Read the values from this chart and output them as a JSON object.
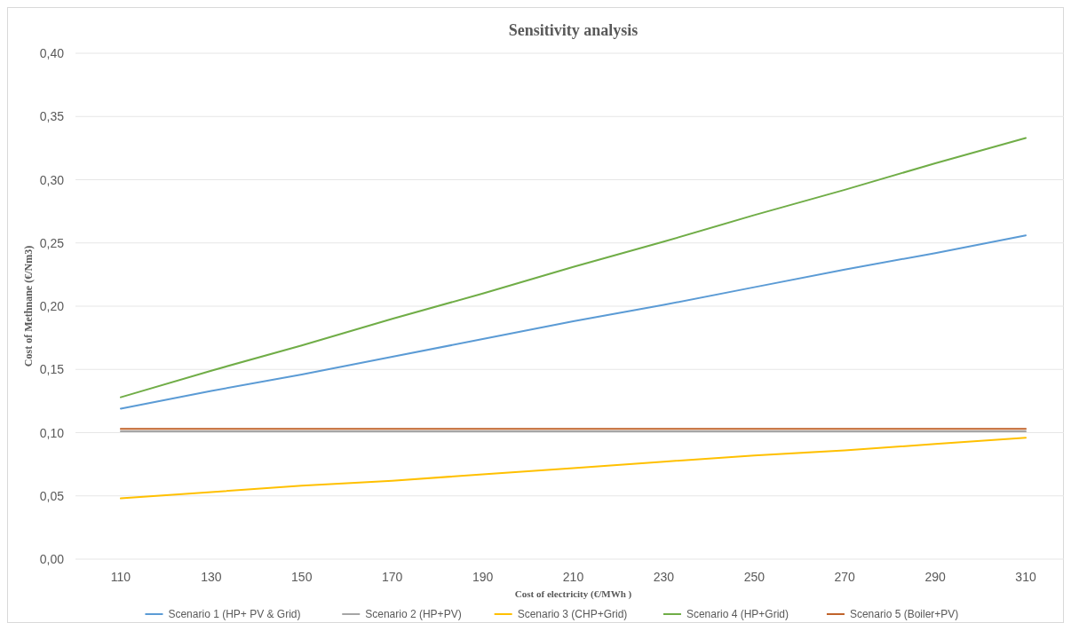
{
  "chart_data": {
    "type": "line",
    "title": "Sensitivity analysis",
    "xlabel": "Cost of electricity (€/MWh )",
    "ylabel": "Cost of Methnane (€/Nm3)",
    "categories": [
      "110",
      "130",
      "150",
      "170",
      "190",
      "210",
      "230",
      "250",
      "270",
      "290",
      "310"
    ],
    "series": [
      {
        "name": "Scenario 1 (HP+ PV & Grid)",
        "color": "#5b9bd5",
        "values": [
          0.119,
          0.133,
          0.146,
          0.16,
          0.174,
          0.188,
          0.201,
          0.215,
          0.229,
          0.242,
          0.256
        ]
      },
      {
        "name": "Scenario 2 (HP+PV)",
        "color": "#a5a5a5",
        "values": [
          0.101,
          0.101,
          0.101,
          0.101,
          0.101,
          0.101,
          0.101,
          0.101,
          0.101,
          0.101,
          0.101
        ]
      },
      {
        "name": "Scenario 3 (CHP+Grid)",
        "color": "#ffc000",
        "values": [
          0.048,
          0.053,
          0.058,
          0.062,
          0.067,
          0.072,
          0.077,
          0.082,
          0.086,
          0.091,
          0.096
        ]
      },
      {
        "name": "Scenario 4 (HP+Grid)",
        "color": "#70ad47",
        "values": [
          0.128,
          0.149,
          0.169,
          0.19,
          0.21,
          0.231,
          0.251,
          0.272,
          0.292,
          0.313,
          0.333
        ]
      },
      {
        "name": "Scenario 5 (Boiler+PV)",
        "color": "#c0632b",
        "values": [
          0.103,
          0.103,
          0.103,
          0.103,
          0.103,
          0.103,
          0.103,
          0.103,
          0.103,
          0.103,
          0.103
        ]
      }
    ],
    "ylim": [
      0,
      0.4
    ],
    "yticks": [
      {
        "value": 0,
        "label": "0,00"
      },
      {
        "value": 0.05,
        "label": "0,05"
      },
      {
        "value": 0.1,
        "label": "0,10"
      },
      {
        "value": 0.15,
        "label": "0,15"
      },
      {
        "value": 0.2,
        "label": "0,20"
      },
      {
        "value": 0.25,
        "label": "0,25"
      },
      {
        "value": 0.3,
        "label": "0,30"
      },
      {
        "value": 0.35,
        "label": "0,35"
      },
      {
        "value": 0.4,
        "label": "0,40"
      }
    ],
    "grid": "y",
    "legend": "bottom",
    "marker": "none",
    "line_style": "solid"
  }
}
